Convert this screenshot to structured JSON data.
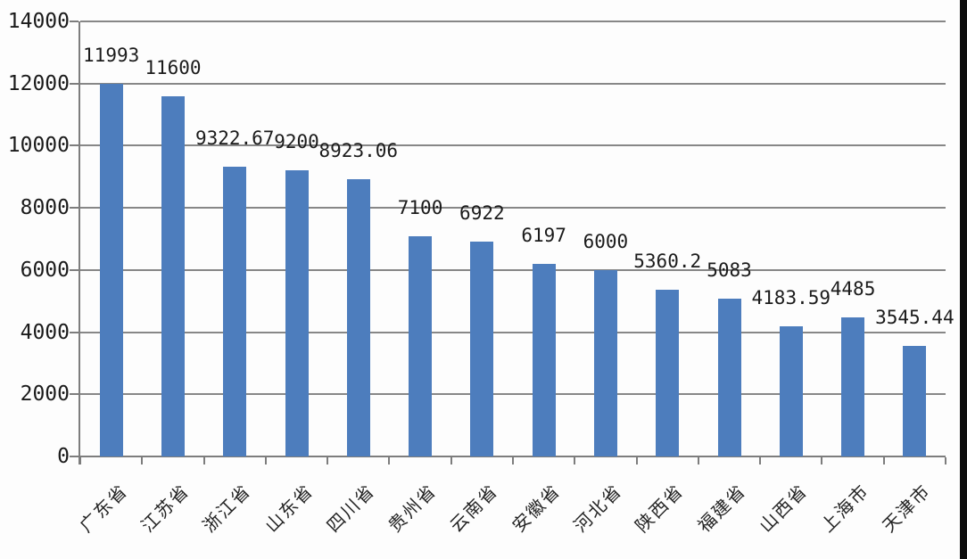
{
  "chart_data": {
    "type": "bar",
    "title": "",
    "xlabel": "",
    "ylabel": "",
    "categories": [
      "广东省",
      "江苏省",
      "浙江省",
      "山东省",
      "四川省",
      "贵州省",
      "云南省",
      "安徽省",
      "河北省",
      "陕西省",
      "福建省",
      "山西省",
      "上海市",
      "天津市"
    ],
    "values": [
      11993,
      11600,
      9322.67,
      9200,
      8923.06,
      7100,
      6922,
      6197,
      6000,
      5360.2,
      5083,
      4183.59,
      4485,
      3545.44
    ],
    "data_labels": [
      "11993",
      "11600",
      "9322.67",
      "9200",
      "8923.06",
      "7100",
      "6922",
      "6197",
      "6000",
      "5360.2",
      "5083",
      "4183.59",
      "4485",
      "3545.44"
    ],
    "ylim": [
      0,
      14000
    ],
    "y_ticks": [
      0,
      2000,
      4000,
      6000,
      8000,
      10000,
      12000,
      14000
    ],
    "y_tick_labels": [
      "0",
      "2000",
      "4000",
      "6000",
      "8000",
      "10000",
      "12000",
      "14000"
    ],
    "grid": true,
    "legend": false,
    "bar_color": "#4d7dbd",
    "grid_color": "#878787",
    "axis_color": "#7d7d7d",
    "text_color": "#1b1b1b"
  }
}
